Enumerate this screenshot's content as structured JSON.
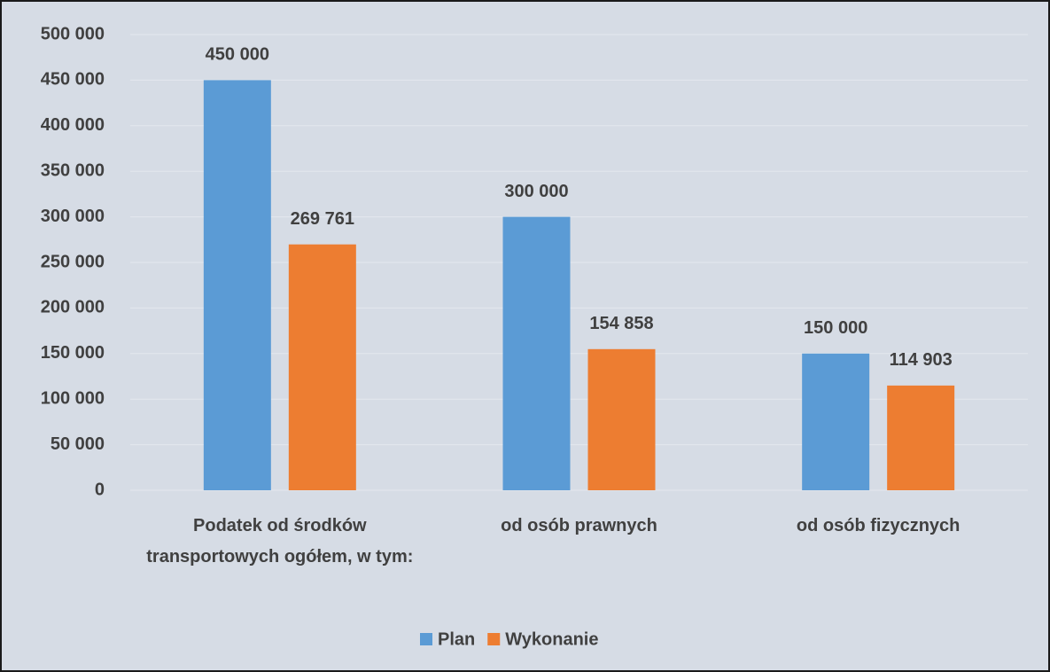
{
  "chart_data": {
    "type": "bar",
    "categories": [
      "Podatek od środków transportowych ogółem, w tym:",
      "od osób prawnych",
      "od osób fizycznych"
    ],
    "series": [
      {
        "name": "Plan",
        "color": "#5b9bd5",
        "values": [
          450000,
          300000,
          150000
        ],
        "value_labels": [
          "450 000",
          "300 000",
          "150 000"
        ]
      },
      {
        "name": "Wykonanie",
        "color": "#ed7d31",
        "values": [
          269761,
          154858,
          114903
        ],
        "value_labels": [
          "269 761",
          "154 858",
          "114 903"
        ]
      }
    ],
    "ylim": [
      0,
      500000
    ],
    "yticks": [
      {
        "value": 0,
        "label": "0"
      },
      {
        "value": 50000,
        "label": "50 000"
      },
      {
        "value": 100000,
        "label": "100 000"
      },
      {
        "value": 150000,
        "label": "150 000"
      },
      {
        "value": 200000,
        "label": "200 000"
      },
      {
        "value": 250000,
        "label": "250 000"
      },
      {
        "value": 300000,
        "label": "300 000"
      },
      {
        "value": 350000,
        "label": "350 000"
      },
      {
        "value": 400000,
        "label": "400 000"
      },
      {
        "value": 450000,
        "label": "450 000"
      },
      {
        "value": 500000,
        "label": "500 000"
      }
    ],
    "grid": true,
    "legend": "bottom"
  }
}
